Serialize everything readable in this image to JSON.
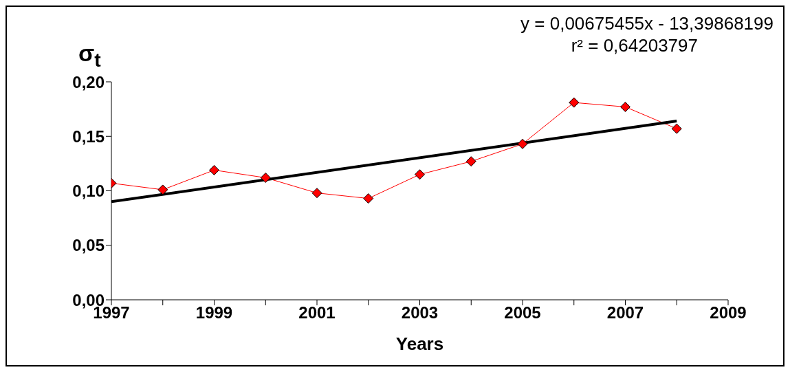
{
  "chart_data": {
    "type": "line",
    "ylabel": "σ$_{t}$",
    "xlabel": "Years",
    "annotations": [
      "y = 0,00675455x - 13,39868199",
      "r² = 0,64203797"
    ],
    "xlim": [
      1997,
      2009
    ],
    "xticks": [
      1997,
      {
        "value": 1998,
        "label": null
      },
      1999,
      {
        "value": 2000,
        "label": null
      },
      2001,
      {
        "value": 2002,
        "label": null
      },
      2003,
      {
        "value": 2004,
        "label": null
      },
      2005,
      {
        "value": 2006,
        "label": null
      },
      2007,
      {
        "value": 2008,
        "label": null
      },
      2009
    ],
    "ylim": [
      0,
      0.2
    ],
    "yticks": [
      {
        "value": 0,
        "label": "0,00"
      },
      {
        "value": 0.05,
        "label": "0,05"
      },
      {
        "value": 0.1,
        "label": "0,10"
      },
      {
        "value": 0.15,
        "label": "0,15"
      },
      {
        "value": 0.2,
        "label": "0,20"
      }
    ],
    "grid": false,
    "legend": false,
    "series": [
      {
        "color": "#ff0000",
        "marker": "diamond",
        "x": [
          1997,
          1998,
          1999,
          2000,
          2001,
          2002,
          2003,
          2004,
          2005,
          2006,
          2007,
          2008
        ],
        "values": [
          0.107,
          0.101,
          0.119,
          0.112,
          0.098,
          0.093,
          0.115,
          0.127,
          0.143,
          0.181,
          0.177,
          0.157
        ]
      },
      {
        "color": "#000000",
        "marker": "none",
        "x": [
          1997,
          2008
        ],
        "values": [
          0.09,
          0.164
        ]
      }
    ]
  }
}
